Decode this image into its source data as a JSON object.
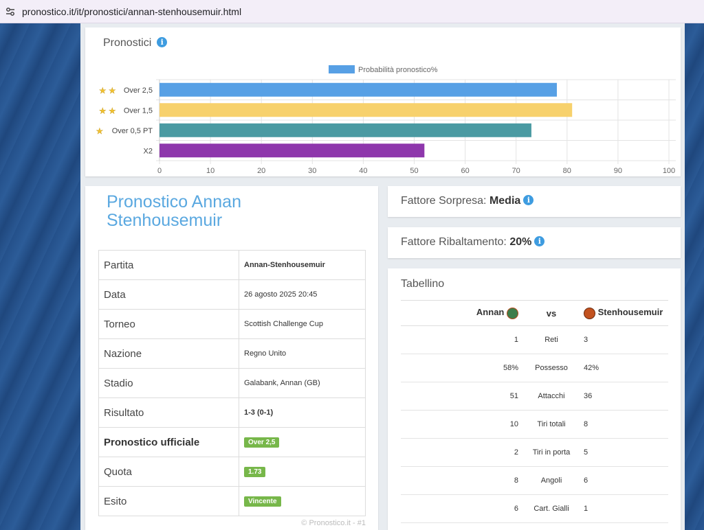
{
  "browser": {
    "url": "pronostico.it/it/pronostici/annan-stenhousemuir.html"
  },
  "chart_card": {
    "title": "Pronostici"
  },
  "chart_data": {
    "type": "bar",
    "orientation": "horizontal",
    "categories": [
      "Over 2,5",
      "Over 1,5",
      "Over 0,5 PT",
      "X2"
    ],
    "category_stars": [
      2,
      2,
      1,
      0
    ],
    "series": [
      {
        "name": "Probabilità pronostico%",
        "values": [
          78,
          81,
          73,
          52
        ]
      }
    ],
    "bar_colors": [
      "#57a0e5",
      "#f7d16c",
      "#4a9aa2",
      "#8e37ac"
    ],
    "legend_color": "#57a0e5",
    "xlim": [
      0,
      100
    ],
    "xticks": [
      "0",
      "10",
      "20",
      "30",
      "40",
      "50",
      "60",
      "70",
      "80",
      "90",
      "100"
    ],
    "grid": true,
    "legend": "top"
  },
  "match": {
    "title": "Pronostico Annan Stenhousemuir",
    "rows": [
      {
        "key": "Partita",
        "value": "Annan-Stenhousemuir"
      },
      {
        "key": "Data",
        "value": "26 agosto 2025 20:45"
      },
      {
        "key": "Torneo",
        "value": "Scottish Challenge Cup"
      },
      {
        "key": "Nazione",
        "value": "Regno Unito"
      },
      {
        "key": "Stadio",
        "value": "Galabank, Annan (GB)"
      },
      {
        "key": "Risultato",
        "value": "1-3 (0-1)"
      },
      {
        "key": "Pronostico ufficiale",
        "value": "Over 2,5"
      },
      {
        "key": "Quota",
        "value": "1.73"
      },
      {
        "key": "Esito",
        "value": "Vincente"
      }
    ],
    "badge_color": "#77b74a",
    "copyright": "© Pronostico.it - #1"
  },
  "sorpresa": {
    "label": "Fattore Sorpresa:",
    "value": "Media"
  },
  "ribaltamento": {
    "label": "Fattore Ribaltamento:",
    "value": "20%"
  },
  "tabellino": {
    "title": "Tabellino",
    "home": "Annan",
    "vs": "vs",
    "away": "Stenhousemuir",
    "rows": [
      {
        "home": "1",
        "stat": "Reti",
        "away": "3"
      },
      {
        "home": "58%",
        "stat": "Possesso",
        "away": "42%"
      },
      {
        "home": "51",
        "stat": "Attacchi",
        "away": "36"
      },
      {
        "home": "10",
        "stat": "Tiri totali",
        "away": "8"
      },
      {
        "home": "2",
        "stat": "Tiri in porta",
        "away": "5"
      },
      {
        "home": "8",
        "stat": "Angoli",
        "away": "6"
      },
      {
        "home": "6",
        "stat": "Cart. Gialli",
        "away": "1"
      }
    ]
  },
  "icons": {
    "info": "info-icon",
    "star": "star-icon",
    "tune": "site-settings-icon"
  }
}
